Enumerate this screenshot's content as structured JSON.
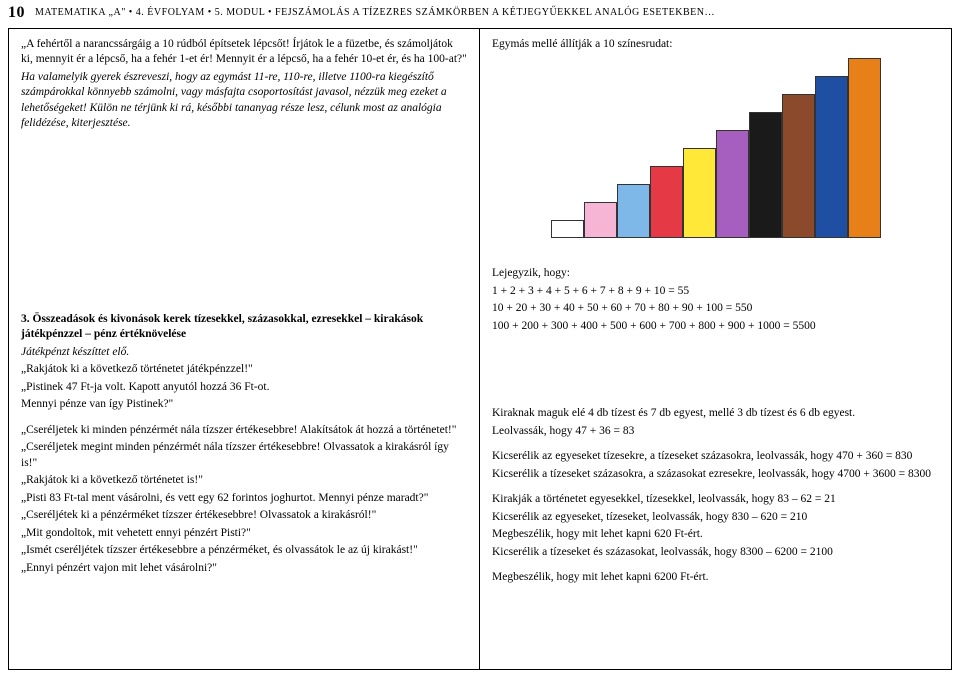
{
  "header": {
    "page_number": "10",
    "text": "MATEMATIKA „A\" • 4. ÉVFOLYAM • 5. MODUL • FEJSZÁMOLÁS A TÍZEZRES SZÁMKÖRBEN A KÉTJEGYŰEKKEL ANALÓG ESETEKBEN…"
  },
  "left": {
    "p1": "„A fehértől a narancssárgáig a 10 rúdból építsetek lépcsőt! Írjátok le a füzetbe, és számoljátok ki, mennyit ér a lépcső, ha a fehér 1-et ér! Mennyit ér a lépcső, ha a fehér 10-et ér, és ha 100-at?\"",
    "p2": "Ha valamelyik gyerek észreveszi, hogy az egymást 11-re, 110-re, illetve 1100-ra kiegészítő számpárokkal könnyebb számolni, vagy másfajta csoportosítást javasol, nézzük meg ezeket a lehetőségeket! Külön ne térjünk ki rá, későbbi tananyag része lesz, célunk most az analógia felidézése, kiterjesztése.",
    "s3_title": "3. Összeadások és kivonások kerek tízesekkel, százasokkal, ezresekkel – kirakások játékpénzzel – pénz értéknövelése",
    "s3_l1": "Játékpénzt készíttet elő.",
    "s3_l2": "„Rakjátok ki a következő történetet játékpénzzel!\"",
    "s3_l3": "„Pistinek 47 Ft-ja volt. Kapott anyutól hozzá 36 Ft-ot.",
    "s3_l4": "Mennyi pénze van így Pistinek?\"",
    "s3_l5": "„Cseréljetek ki minden pénzérmét nála tízszer értékesebbre! Alakítsátok át hozzá a történetet!\"",
    "s3_l6": "„Cseréljetek megint minden pénzérmét nála tízszer értékesebbre! Olvassatok a kirakásról így is!\"",
    "s3_l7": "„Rakjátok ki a következő történetet is!\"",
    "s3_l8": "„Pisti 83 Ft-tal ment vásárolni, és vett egy 62 forintos joghurtot. Mennyi pénze maradt?\"",
    "s3_l9": "„Cseréljétek ki a pénzérméket tízszer értékesebbre! Olvassatok a kirakásról!\"",
    "s3_l10": "„Mit gondoltok, mit vehetett ennyi pénzért Pisti?\"",
    "s3_l11": "„Ismét cseréljétek tízszer értékesebbre a pénzérméket, és olvassátok le az új kirakást!\"",
    "s3_l12": "„Ennyi pénzért vajon mit lehet vásárolni?\""
  },
  "right": {
    "p1": "Egymás mellé állítják a 10 színesrudat:",
    "lej_title": "Lejegyzik, hogy:",
    "lej_l1": "1 + 2 + 3 + 4 + 5 + 6 + 7 + 8 + 9 + 10 = 55",
    "lej_l2": "10 + 20 + 30 + 40 + 50 + 60 + 70 + 80 + 90 + 100 = 550",
    "lej_l3": "100 + 200 + 300 + 400 + 500 + 600 + 700 + 800 + 900 + 1000 = 5500",
    "r_l1": "Kiraknak maguk elé 4 db tízest és 7 db egyest, mellé 3 db tízest és 6 db egyest.",
    "r_l2": "Leolvassák, hogy 47 + 36 = 83",
    "r_l3": "Kicserélik az egyeseket tízesekre, a tízeseket százasokra, leolvassák, hogy 470 + 360 = 830",
    "r_l4": "Kicserélik a tízeseket százasokra, a százasokat ezresekre, leolvassák, hogy 4700 + 3600 = 8300",
    "r_l5": "Kirakják a történetet egyesekkel, tízesekkel, leolvassák, hogy 83 – 62 = 21",
    "r_l6": "Kicserélik az egyeseket, tízeseket, leolvassák, hogy 830 – 620 = 210",
    "r_l7": "Megbeszélik, hogy mit lehet kapni 620 Ft-ért.",
    "r_l8": "Kicserélik a tízeseket és százasokat, leolvassák, hogy 8300 – 6200 = 2100",
    "r_l9": "Megbeszélik, hogy mit lehet kapni 6200 Ft-ért."
  },
  "chart": {
    "bars": [
      {
        "h": 18,
        "c": "#ffffff"
      },
      {
        "h": 36,
        "c": "#f7b5d5"
      },
      {
        "h": 54,
        "c": "#7db8e8"
      },
      {
        "h": 72,
        "c": "#e63946"
      },
      {
        "h": 90,
        "c": "#ffe838"
      },
      {
        "h": 108,
        "c": "#a65fbf"
      },
      {
        "h": 126,
        "c": "#1a1a1a"
      },
      {
        "h": 144,
        "c": "#8b4a2b"
      },
      {
        "h": 162,
        "c": "#1e4fa3"
      },
      {
        "h": 180,
        "c": "#e8801a"
      }
    ]
  }
}
